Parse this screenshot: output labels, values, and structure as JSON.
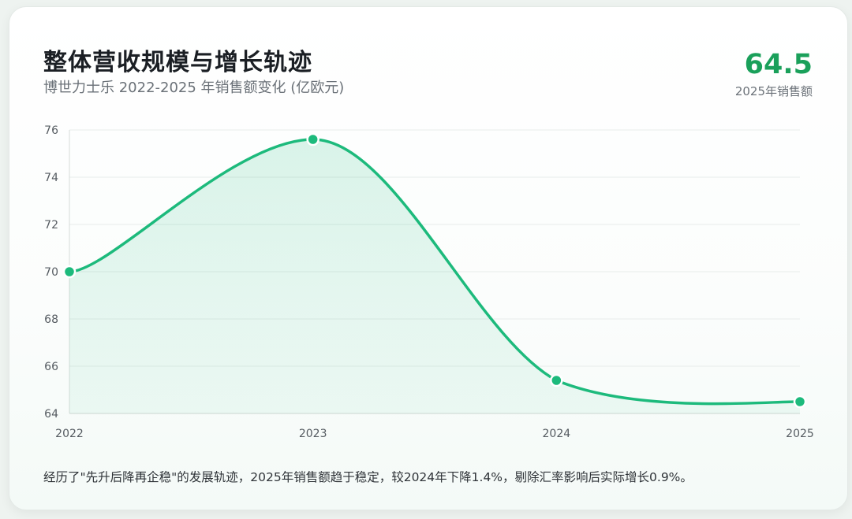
{
  "card": {
    "title": "整体营收规模与增长轨迹",
    "subtitle": "博世力士乐 2022-2025 年销售额变化 (亿欧元)",
    "kpi_value": "64.5",
    "kpi_label": "2025年销售额",
    "footnote": "经历了\"先升后降再企稳\"的发展轨迹，2025年销售额趋于稳定，较2024年下降1.4%，剔除汇率影响后实际增长0.9%。"
  },
  "colors": {
    "line": "#1dba7c",
    "area": "#1dba7c",
    "kpi": "#1aa05a"
  },
  "chart_data": {
    "type": "area",
    "x": [
      "2022",
      "2023",
      "2024",
      "2025"
    ],
    "series": [
      {
        "values": [
          70.0,
          75.6,
          65.4,
          64.5
        ]
      }
    ],
    "ylim": [
      64,
      76
    ],
    "yticks": [
      64,
      66,
      68,
      70,
      72,
      74,
      76
    ],
    "xlabel": "",
    "ylabel": "",
    "grid": true,
    "smooth": true
  }
}
